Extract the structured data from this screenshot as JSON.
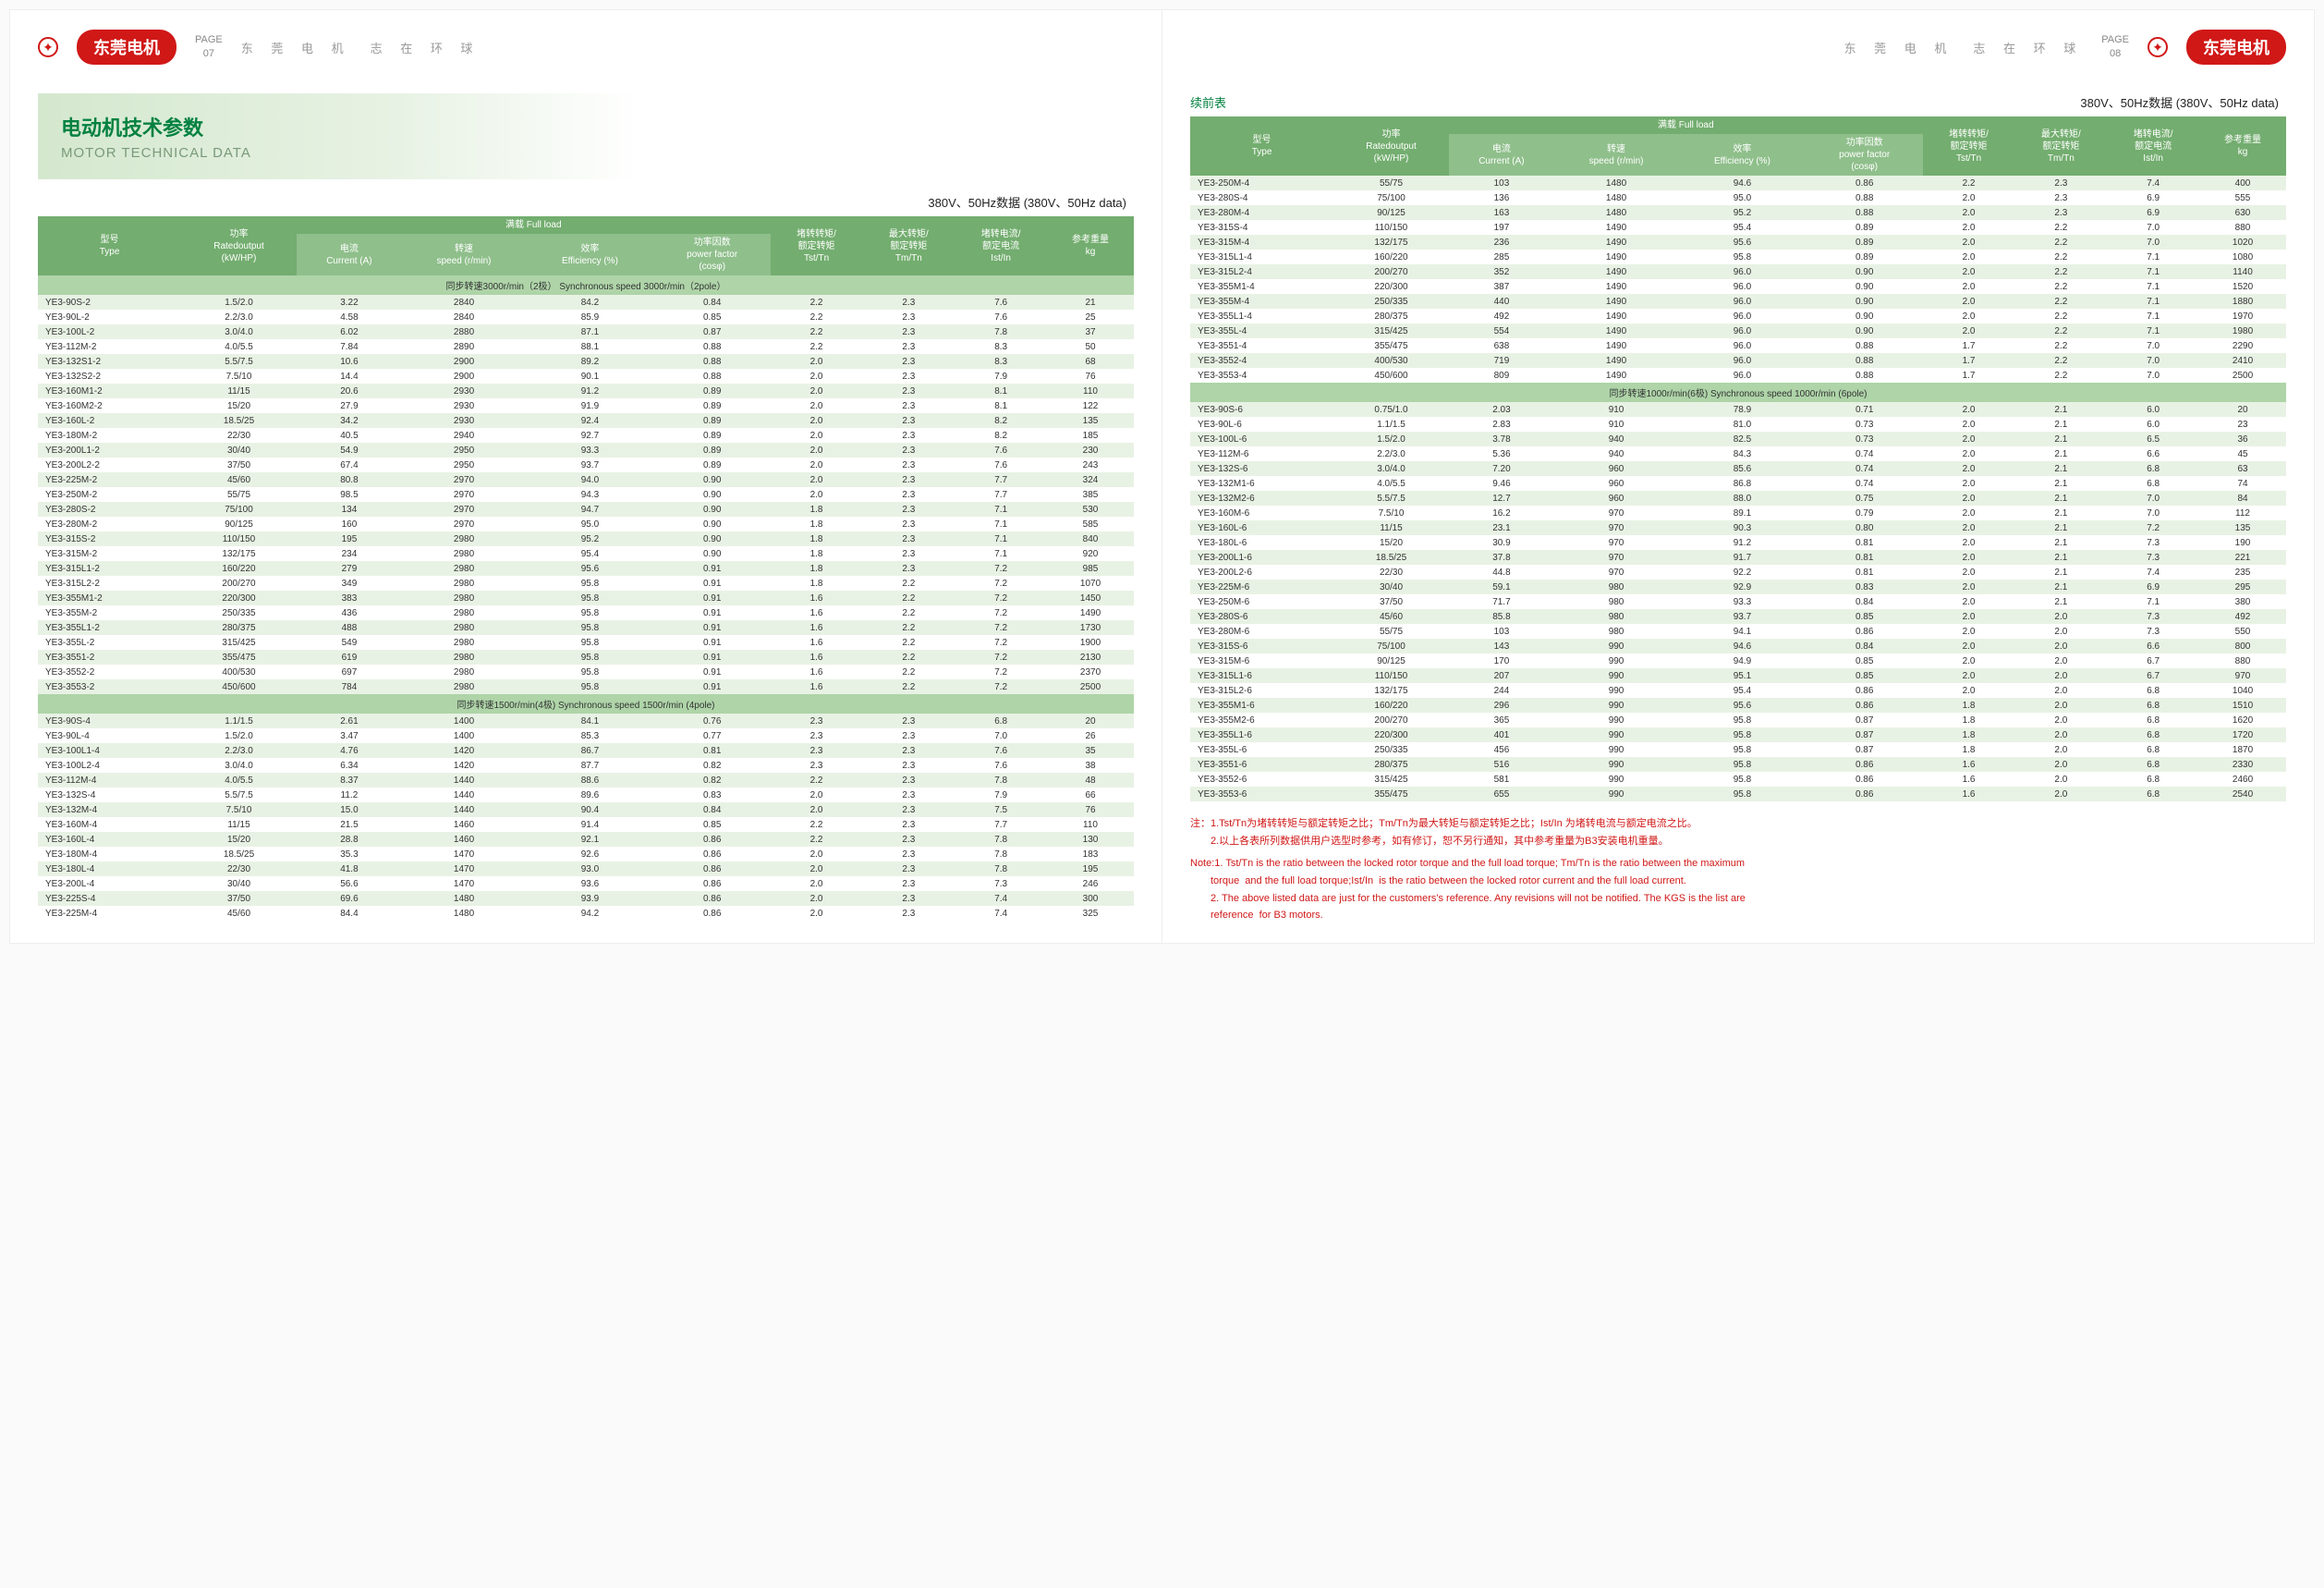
{
  "brand": "东莞电机",
  "tagline": "东 莞 电 机　志 在 环 球",
  "page_left": "PAGE\n07",
  "page_right": "PAGE\n08",
  "title_cn": "电动机技术参数",
  "title_en": "MOTOR TECHNICAL DATA",
  "data_header": "380V、50Hz数据 (380V、50Hz data)",
  "cont_label": "续前表",
  "cols": {
    "type": "型号",
    "type_en": "Type",
    "power": "功率",
    "power_en": "Ratedoutput\n(kW/HP)",
    "fullload": "满载 Full load",
    "current": "电流",
    "current_en": "Current (A)",
    "speed": "转速",
    "speed_en": "speed (r/min)",
    "eff": "效率",
    "eff_en": "Efficiency (%)",
    "pf": "功率因数",
    "pf_en": "power factor\n(cosφ)",
    "tst": "堵转转矩/\n额定转矩",
    "tst_en": "Tst/Tn",
    "tm": "最大转矩/\n额定转矩",
    "tm_en": "Tm/Tn",
    "ist": "堵转电流/\n额定电流",
    "ist_en": "Ist/In",
    "wt": "参考重量",
    "wt_en": "kg"
  },
  "sec_2p": "同步转速3000r/min（2极） Synchronous speed 3000r/min（2pole）",
  "sec_4p": "同步转速1500r/min(4极) Synchronous speed 1500r/min (4pole)",
  "sec_6p": "同步转速1000r/min(6极) Synchronous speed 1000r/min (6pole)",
  "rows_2p": [
    [
      "YE3-90S-2",
      "1.5/2.0",
      "3.22",
      "2840",
      "84.2",
      "0.84",
      "2.2",
      "2.3",
      "7.6",
      "21"
    ],
    [
      "YE3-90L-2",
      "2.2/3.0",
      "4.58",
      "2840",
      "85.9",
      "0.85",
      "2.2",
      "2.3",
      "7.6",
      "25"
    ],
    [
      "YE3-100L-2",
      "3.0/4.0",
      "6.02",
      "2880",
      "87.1",
      "0.87",
      "2.2",
      "2.3",
      "7.8",
      "37"
    ],
    [
      "YE3-112M-2",
      "4.0/5.5",
      "7.84",
      "2890",
      "88.1",
      "0.88",
      "2.2",
      "2.3",
      "8.3",
      "50"
    ],
    [
      "YE3-132S1-2",
      "5.5/7.5",
      "10.6",
      "2900",
      "89.2",
      "0.88",
      "2.0",
      "2.3",
      "8.3",
      "68"
    ],
    [
      "YE3-132S2-2",
      "7.5/10",
      "14.4",
      "2900",
      "90.1",
      "0.88",
      "2.0",
      "2.3",
      "7.9",
      "76"
    ],
    [
      "YE3-160M1-2",
      "11/15",
      "20.6",
      "2930",
      "91.2",
      "0.89",
      "2.0",
      "2.3",
      "8.1",
      "110"
    ],
    [
      "YE3-160M2-2",
      "15/20",
      "27.9",
      "2930",
      "91.9",
      "0.89",
      "2.0",
      "2.3",
      "8.1",
      "122"
    ],
    [
      "YE3-160L-2",
      "18.5/25",
      "34.2",
      "2930",
      "92.4",
      "0.89",
      "2.0",
      "2.3",
      "8.2",
      "135"
    ],
    [
      "YE3-180M-2",
      "22/30",
      "40.5",
      "2940",
      "92.7",
      "0.89",
      "2.0",
      "2.3",
      "8.2",
      "185"
    ],
    [
      "YE3-200L1-2",
      "30/40",
      "54.9",
      "2950",
      "93.3",
      "0.89",
      "2.0",
      "2.3",
      "7.6",
      "230"
    ],
    [
      "YE3-200L2-2",
      "37/50",
      "67.4",
      "2950",
      "93.7",
      "0.89",
      "2.0",
      "2.3",
      "7.6",
      "243"
    ],
    [
      "YE3-225M-2",
      "45/60",
      "80.8",
      "2970",
      "94.0",
      "0.90",
      "2.0",
      "2.3",
      "7.7",
      "324"
    ],
    [
      "YE3-250M-2",
      "55/75",
      "98.5",
      "2970",
      "94.3",
      "0.90",
      "2.0",
      "2.3",
      "7.7",
      "385"
    ],
    [
      "YE3-280S-2",
      "75/100",
      "134",
      "2970",
      "94.7",
      "0.90",
      "1.8",
      "2.3",
      "7.1",
      "530"
    ],
    [
      "YE3-280M-2",
      "90/125",
      "160",
      "2970",
      "95.0",
      "0.90",
      "1.8",
      "2.3",
      "7.1",
      "585"
    ],
    [
      "YE3-315S-2",
      "110/150",
      "195",
      "2980",
      "95.2",
      "0.90",
      "1.8",
      "2.3",
      "7.1",
      "840"
    ],
    [
      "YE3-315M-2",
      "132/175",
      "234",
      "2980",
      "95.4",
      "0.90",
      "1.8",
      "2.3",
      "7.1",
      "920"
    ],
    [
      "YE3-315L1-2",
      "160/220",
      "279",
      "2980",
      "95.6",
      "0.91",
      "1.8",
      "2.3",
      "7.2",
      "985"
    ],
    [
      "YE3-315L2-2",
      "200/270",
      "349",
      "2980",
      "95.8",
      "0.91",
      "1.8",
      "2.2",
      "7.2",
      "1070"
    ],
    [
      "YE3-355M1-2",
      "220/300",
      "383",
      "2980",
      "95.8",
      "0.91",
      "1.6",
      "2.2",
      "7.2",
      "1450"
    ],
    [
      "YE3-355M-2",
      "250/335",
      "436",
      "2980",
      "95.8",
      "0.91",
      "1.6",
      "2.2",
      "7.2",
      "1490"
    ],
    [
      "YE3-355L1-2",
      "280/375",
      "488",
      "2980",
      "95.8",
      "0.91",
      "1.6",
      "2.2",
      "7.2",
      "1730"
    ],
    [
      "YE3-355L-2",
      "315/425",
      "549",
      "2980",
      "95.8",
      "0.91",
      "1.6",
      "2.2",
      "7.2",
      "1900"
    ],
    [
      "YE3-3551-2",
      "355/475",
      "619",
      "2980",
      "95.8",
      "0.91",
      "1.6",
      "2.2",
      "7.2",
      "2130"
    ],
    [
      "YE3-3552-2",
      "400/530",
      "697",
      "2980",
      "95.8",
      "0.91",
      "1.6",
      "2.2",
      "7.2",
      "2370"
    ],
    [
      "YE3-3553-2",
      "450/600",
      "784",
      "2980",
      "95.8",
      "0.91",
      "1.6",
      "2.2",
      "7.2",
      "2500"
    ]
  ],
  "rows_4p_left": [
    [
      "YE3-90S-4",
      "1.1/1.5",
      "2.61",
      "1400",
      "84.1",
      "0.76",
      "2.3",
      "2.3",
      "6.8",
      "20"
    ],
    [
      "YE3-90L-4",
      "1.5/2.0",
      "3.47",
      "1400",
      "85.3",
      "0.77",
      "2.3",
      "2.3",
      "7.0",
      "26"
    ],
    [
      "YE3-100L1-4",
      "2.2/3.0",
      "4.76",
      "1420",
      "86.7",
      "0.81",
      "2.3",
      "2.3",
      "7.6",
      "35"
    ],
    [
      "YE3-100L2-4",
      "3.0/4.0",
      "6.34",
      "1420",
      "87.7",
      "0.82",
      "2.3",
      "2.3",
      "7.6",
      "38"
    ],
    [
      "YE3-112M-4",
      "4.0/5.5",
      "8.37",
      "1440",
      "88.6",
      "0.82",
      "2.2",
      "2.3",
      "7.8",
      "48"
    ],
    [
      "YE3-132S-4",
      "5.5/7.5",
      "11.2",
      "1440",
      "89.6",
      "0.83",
      "2.0",
      "2.3",
      "7.9",
      "66"
    ],
    [
      "YE3-132M-4",
      "7.5/10",
      "15.0",
      "1440",
      "90.4",
      "0.84",
      "2.0",
      "2.3",
      "7.5",
      "76"
    ],
    [
      "YE3-160M-4",
      "11/15",
      "21.5",
      "1460",
      "91.4",
      "0.85",
      "2.2",
      "2.3",
      "7.7",
      "110"
    ],
    [
      "YE3-160L-4",
      "15/20",
      "28.8",
      "1460",
      "92.1",
      "0.86",
      "2.2",
      "2.3",
      "7.8",
      "130"
    ],
    [
      "YE3-180M-4",
      "18.5/25",
      "35.3",
      "1470",
      "92.6",
      "0.86",
      "2.0",
      "2.3",
      "7.8",
      "183"
    ],
    [
      "YE3-180L-4",
      "22/30",
      "41.8",
      "1470",
      "93.0",
      "0.86",
      "2.0",
      "2.3",
      "7.8",
      "195"
    ],
    [
      "YE3-200L-4",
      "30/40",
      "56.6",
      "1470",
      "93.6",
      "0.86",
      "2.0",
      "2.3",
      "7.3",
      "246"
    ],
    [
      "YE3-225S-4",
      "37/50",
      "69.6",
      "1480",
      "93.9",
      "0.86",
      "2.0",
      "2.3",
      "7.4",
      "300"
    ],
    [
      "YE3-225M-4",
      "45/60",
      "84.4",
      "1480",
      "94.2",
      "0.86",
      "2.0",
      "2.3",
      "7.4",
      "325"
    ]
  ],
  "rows_4p_right": [
    [
      "YE3-250M-4",
      "55/75",
      "103",
      "1480",
      "94.6",
      "0.86",
      "2.2",
      "2.3",
      "7.4",
      "400"
    ],
    [
      "YE3-280S-4",
      "75/100",
      "136",
      "1480",
      "95.0",
      "0.88",
      "2.0",
      "2.3",
      "6.9",
      "555"
    ],
    [
      "YE3-280M-4",
      "90/125",
      "163",
      "1480",
      "95.2",
      "0.88",
      "2.0",
      "2.3",
      "6.9",
      "630"
    ],
    [
      "YE3-315S-4",
      "110/150",
      "197",
      "1490",
      "95.4",
      "0.89",
      "2.0",
      "2.2",
      "7.0",
      "880"
    ],
    [
      "YE3-315M-4",
      "132/175",
      "236",
      "1490",
      "95.6",
      "0.89",
      "2.0",
      "2.2",
      "7.0",
      "1020"
    ],
    [
      "YE3-315L1-4",
      "160/220",
      "285",
      "1490",
      "95.8",
      "0.89",
      "2.0",
      "2.2",
      "7.1",
      "1080"
    ],
    [
      "YE3-315L2-4",
      "200/270",
      "352",
      "1490",
      "96.0",
      "0.90",
      "2.0",
      "2.2",
      "7.1",
      "1140"
    ],
    [
      "YE3-355M1-4",
      "220/300",
      "387",
      "1490",
      "96.0",
      "0.90",
      "2.0",
      "2.2",
      "7.1",
      "1520"
    ],
    [
      "YE3-355M-4",
      "250/335",
      "440",
      "1490",
      "96.0",
      "0.90",
      "2.0",
      "2.2",
      "7.1",
      "1880"
    ],
    [
      "YE3-355L1-4",
      "280/375",
      "492",
      "1490",
      "96.0",
      "0.90",
      "2.0",
      "2.2",
      "7.1",
      "1970"
    ],
    [
      "YE3-355L-4",
      "315/425",
      "554",
      "1490",
      "96.0",
      "0.90",
      "2.0",
      "2.2",
      "7.1",
      "1980"
    ],
    [
      "YE3-3551-4",
      "355/475",
      "638",
      "1490",
      "96.0",
      "0.88",
      "1.7",
      "2.2",
      "7.0",
      "2290"
    ],
    [
      "YE3-3552-4",
      "400/530",
      "719",
      "1490",
      "96.0",
      "0.88",
      "1.7",
      "2.2",
      "7.0",
      "2410"
    ],
    [
      "YE3-3553-4",
      "450/600",
      "809",
      "1490",
      "96.0",
      "0.88",
      "1.7",
      "2.2",
      "7.0",
      "2500"
    ]
  ],
  "rows_6p": [
    [
      "YE3-90S-6",
      "0.75/1.0",
      "2.03",
      "910",
      "78.9",
      "0.71",
      "2.0",
      "2.1",
      "6.0",
      "20"
    ],
    [
      "YE3-90L-6",
      "1.1/1.5",
      "2.83",
      "910",
      "81.0",
      "0.73",
      "2.0",
      "2.1",
      "6.0",
      "23"
    ],
    [
      "YE3-100L-6",
      "1.5/2.0",
      "3.78",
      "940",
      "82.5",
      "0.73",
      "2.0",
      "2.1",
      "6.5",
      "36"
    ],
    [
      "YE3-112M-6",
      "2.2/3.0",
      "5.36",
      "940",
      "84.3",
      "0.74",
      "2.0",
      "2.1",
      "6.6",
      "45"
    ],
    [
      "YE3-132S-6",
      "3.0/4.0",
      "7.20",
      "960",
      "85.6",
      "0.74",
      "2.0",
      "2.1",
      "6.8",
      "63"
    ],
    [
      "YE3-132M1-6",
      "4.0/5.5",
      "9.46",
      "960",
      "86.8",
      "0.74",
      "2.0",
      "2.1",
      "6.8",
      "74"
    ],
    [
      "YE3-132M2-6",
      "5.5/7.5",
      "12.7",
      "960",
      "88.0",
      "0.75",
      "2.0",
      "2.1",
      "7.0",
      "84"
    ],
    [
      "YE3-160M-6",
      "7.5/10",
      "16.2",
      "970",
      "89.1",
      "0.79",
      "2.0",
      "2.1",
      "7.0",
      "112"
    ],
    [
      "YE3-160L-6",
      "11/15",
      "23.1",
      "970",
      "90.3",
      "0.80",
      "2.0",
      "2.1",
      "7.2",
      "135"
    ],
    [
      "YE3-180L-6",
      "15/20",
      "30.9",
      "970",
      "91.2",
      "0.81",
      "2.0",
      "2.1",
      "7.3",
      "190"
    ],
    [
      "YE3-200L1-6",
      "18.5/25",
      "37.8",
      "970",
      "91.7",
      "0.81",
      "2.0",
      "2.1",
      "7.3",
      "221"
    ],
    [
      "YE3-200L2-6",
      "22/30",
      "44.8",
      "970",
      "92.2",
      "0.81",
      "2.0",
      "2.1",
      "7.4",
      "235"
    ],
    [
      "YE3-225M-6",
      "30/40",
      "59.1",
      "980",
      "92.9",
      "0.83",
      "2.0",
      "2.1",
      "6.9",
      "295"
    ],
    [
      "YE3-250M-6",
      "37/50",
      "71.7",
      "980",
      "93.3",
      "0.84",
      "2.0",
      "2.1",
      "7.1",
      "380"
    ],
    [
      "YE3-280S-6",
      "45/60",
      "85.8",
      "980",
      "93.7",
      "0.85",
      "2.0",
      "2.0",
      "7.3",
      "492"
    ],
    [
      "YE3-280M-6",
      "55/75",
      "103",
      "980",
      "94.1",
      "0.86",
      "2.0",
      "2.0",
      "7.3",
      "550"
    ],
    [
      "YE3-315S-6",
      "75/100",
      "143",
      "990",
      "94.6",
      "0.84",
      "2.0",
      "2.0",
      "6.6",
      "800"
    ],
    [
      "YE3-315M-6",
      "90/125",
      "170",
      "990",
      "94.9",
      "0.85",
      "2.0",
      "2.0",
      "6.7",
      "880"
    ],
    [
      "YE3-315L1-6",
      "110/150",
      "207",
      "990",
      "95.1",
      "0.85",
      "2.0",
      "2.0",
      "6.7",
      "970"
    ],
    [
      "YE3-315L2-6",
      "132/175",
      "244",
      "990",
      "95.4",
      "0.86",
      "2.0",
      "2.0",
      "6.8",
      "1040"
    ],
    [
      "YE3-355M1-6",
      "160/220",
      "296",
      "990",
      "95.6",
      "0.86",
      "1.8",
      "2.0",
      "6.8",
      "1510"
    ],
    [
      "YE3-355M2-6",
      "200/270",
      "365",
      "990",
      "95.8",
      "0.87",
      "1.8",
      "2.0",
      "6.8",
      "1620"
    ],
    [
      "YE3-355L1-6",
      "220/300",
      "401",
      "990",
      "95.8",
      "0.87",
      "1.8",
      "2.0",
      "6.8",
      "1720"
    ],
    [
      "YE3-355L-6",
      "250/335",
      "456",
      "990",
      "95.8",
      "0.87",
      "1.8",
      "2.0",
      "6.8",
      "1870"
    ],
    [
      "YE3-3551-6",
      "280/375",
      "516",
      "990",
      "95.8",
      "0.86",
      "1.6",
      "2.0",
      "6.8",
      "2330"
    ],
    [
      "YE3-3552-6",
      "315/425",
      "581",
      "990",
      "95.8",
      "0.86",
      "1.6",
      "2.0",
      "6.8",
      "2460"
    ],
    [
      "YE3-3553-6",
      "355/475",
      "655",
      "990",
      "95.8",
      "0.86",
      "1.6",
      "2.0",
      "6.8",
      "2540"
    ]
  ],
  "note_cn": "注：1.Tst/Tn为堵转转矩与额定转矩之比；Tm/Tn为最大转矩与额定转矩之比；Ist/In 为堵转电流与额定电流之比。\n　　2.以上各表所列数据供用户选型时参考，如有修订，恕不另行通知，其中参考重量为B3安装电机重量。",
  "note_en": "Note:1. Tst/Tn is the ratio between the locked rotor torque and the full load torque; Tm/Tn is the ratio between the maximum\n　　torque  and the full load torque;Ist/In  is the ratio between the locked rotor current and the full load current.\n　　2. The above listed data are just for the customers's reference. Any revisions will not be notified. The KGS is the list are\n　　reference  for B3 motors."
}
